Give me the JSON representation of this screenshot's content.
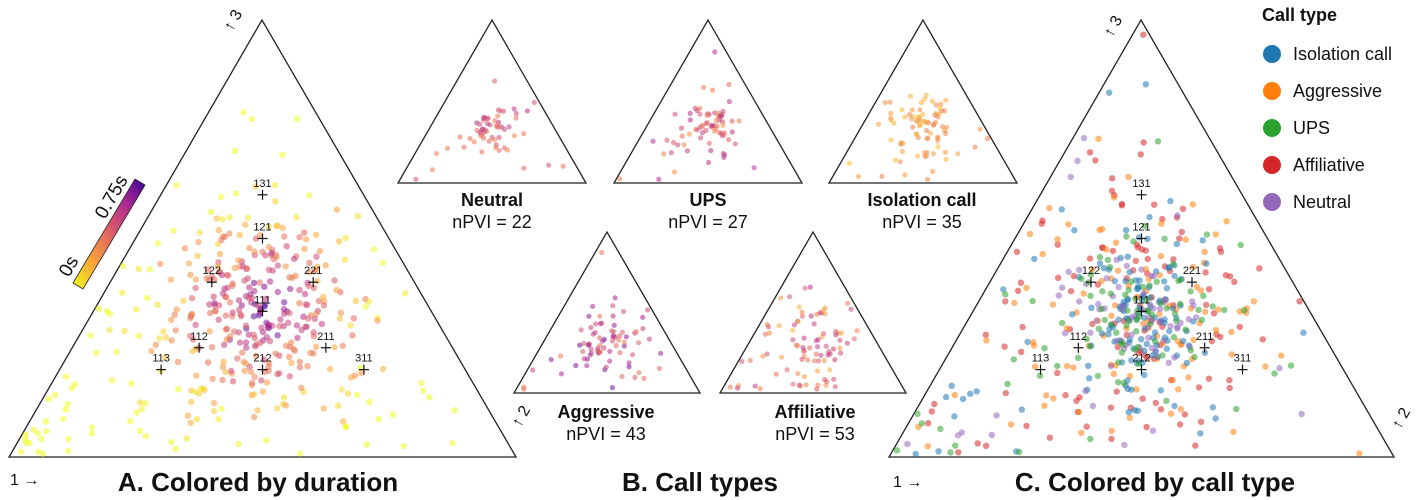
{
  "chart_data": [
    {
      "type": "scatter",
      "title": "A. Colored by duration",
      "vertex_labels": [
        "1 →",
        "↑ 2",
        "↑ 3"
      ],
      "colorbar": {
        "min_label": "0s",
        "max_label": "0.75s",
        "min": 0,
        "max": 0.75
      },
      "markers": [
        "111",
        "112",
        "113",
        "121",
        "122",
        "131",
        "211",
        "212",
        "221",
        "311"
      ],
      "point_count": 420,
      "coordinate_system": "ternary"
    },
    {
      "type": "scatter",
      "title": "B. Call types",
      "panels": [
        {
          "name": "Neutral",
          "npvi": "nPVI = 22",
          "point_count": 60
        },
        {
          "name": "UPS",
          "npvi": "nPVI = 27",
          "point_count": 75
        },
        {
          "name": "Isolation call",
          "npvi": "nPVI = 35",
          "point_count": 85
        },
        {
          "name": "Aggressive",
          "npvi": "nPVI = 43",
          "point_count": 80
        },
        {
          "name": "Affiliative",
          "npvi": "nPVI = 53",
          "point_count": 90
        }
      ]
    },
    {
      "type": "scatter",
      "title": "C. Colored by call type",
      "vertex_labels": [
        "1 →",
        "↑ 2",
        "↑ 3"
      ],
      "legend": {
        "title": "Call type",
        "placement": "top-right",
        "items": [
          {
            "name": "Isolation call",
            "color": "#1f77b4"
          },
          {
            "name": "Aggressive",
            "color": "#ff7f0e"
          },
          {
            "name": "UPS",
            "color": "#2ca02c"
          },
          {
            "name": "Affiliative",
            "color": "#d62728"
          },
          {
            "name": "Neutral",
            "color": "#9467bd"
          }
        ]
      },
      "markers": [
        "111",
        "112",
        "113",
        "121",
        "122",
        "131",
        "211",
        "212",
        "221",
        "311"
      ],
      "point_count": 520,
      "coordinate_system": "ternary"
    }
  ]
}
